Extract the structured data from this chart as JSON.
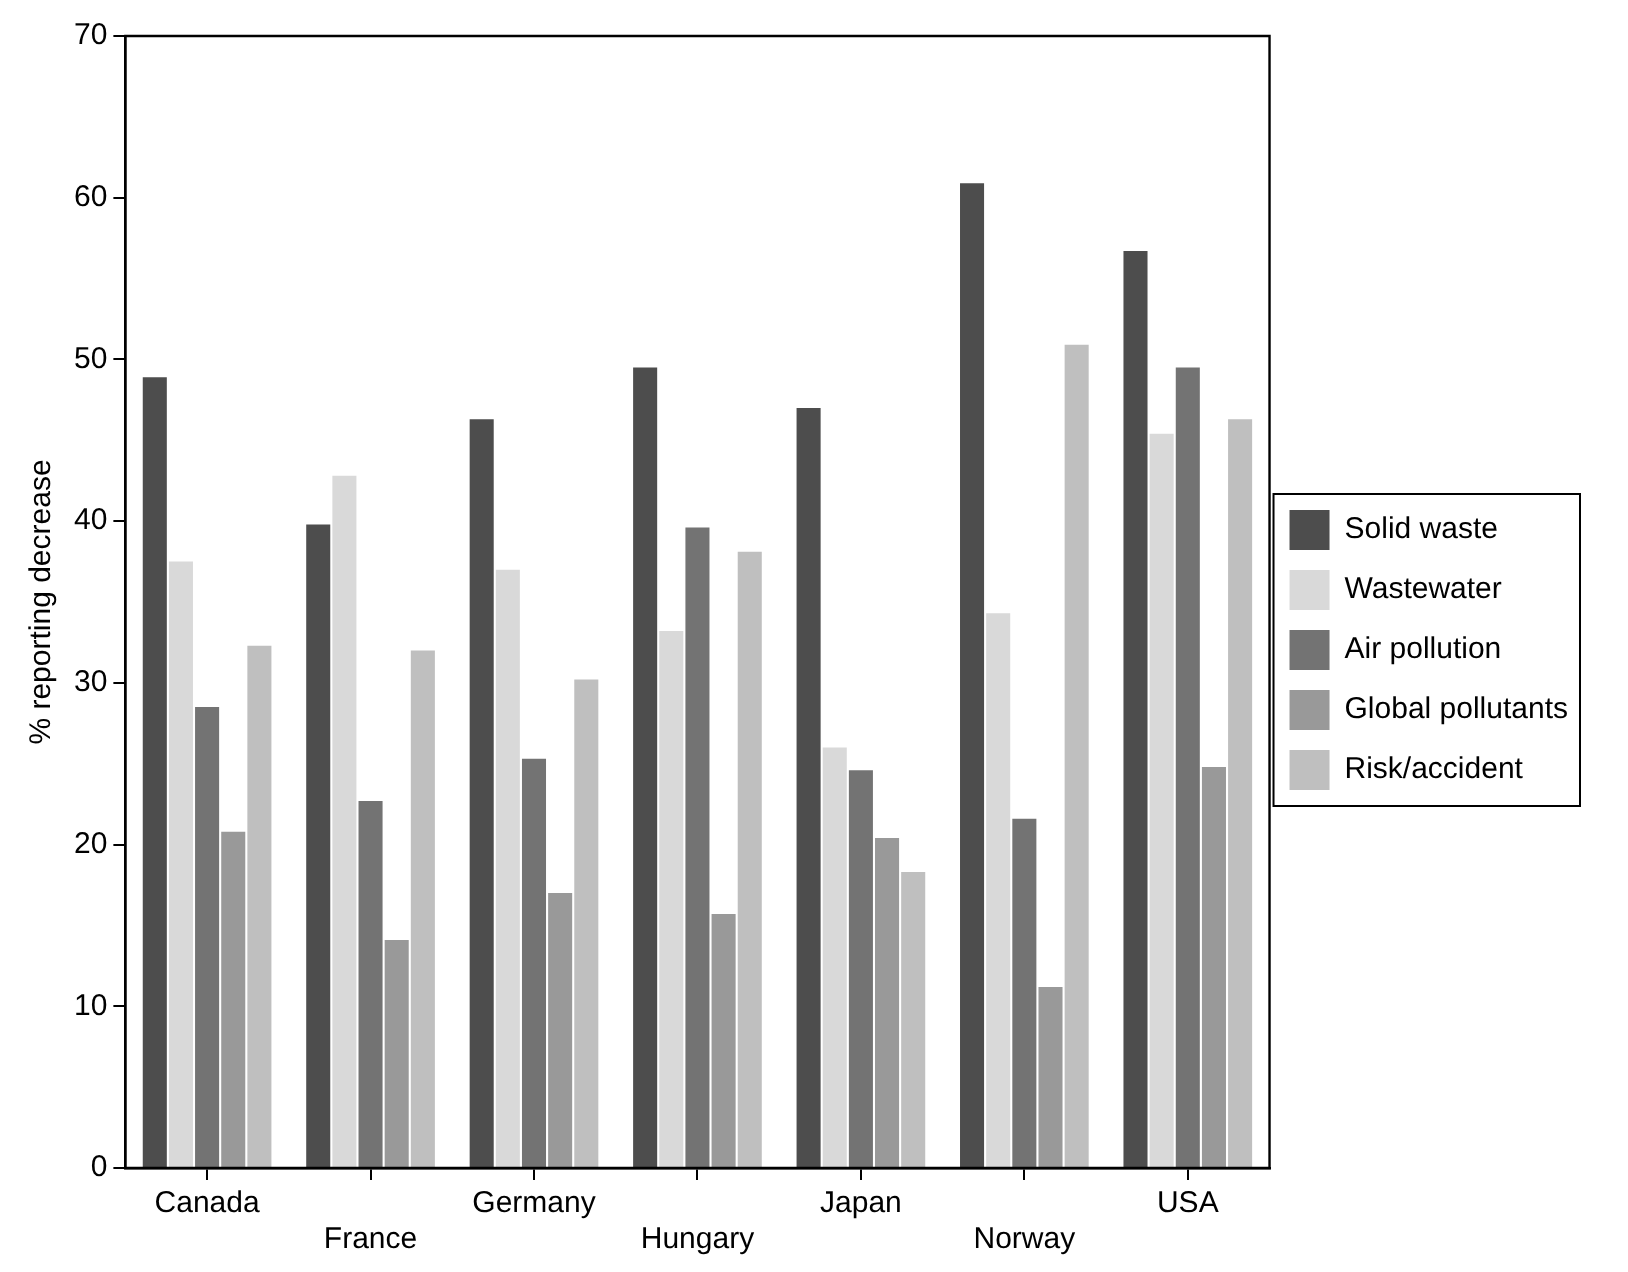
{
  "chart_data": {
    "type": "bar",
    "ylabel": "% reporting decrease",
    "categories": [
      "Canada",
      "France",
      "Germany",
      "Hungary",
      "Japan",
      "Norway",
      "USA"
    ],
    "series": [
      {
        "name": "Solid waste",
        "color": "#4d4d4d",
        "values": [
          48.9,
          39.8,
          46.3,
          49.5,
          47.0,
          60.9,
          56.7
        ]
      },
      {
        "name": "Wastewater",
        "color": "#d9d9d9",
        "values": [
          37.5,
          42.8,
          37.0,
          33.2,
          26.0,
          34.3,
          45.4
        ]
      },
      {
        "name": "Air pollution",
        "color": "#737373",
        "values": [
          28.5,
          22.7,
          25.3,
          39.6,
          24.6,
          21.6,
          49.5
        ]
      },
      {
        "name": "Global pollutants",
        "color": "#999999",
        "values": [
          20.8,
          14.1,
          17.0,
          15.7,
          20.4,
          11.2,
          24.8
        ]
      },
      {
        "name": "Risk/accident",
        "color": "#bfbfbf",
        "values": [
          32.3,
          32.0,
          30.2,
          38.1,
          18.3,
          50.9,
          46.3
        ]
      }
    ],
    "ylim": [
      0,
      70
    ],
    "yticks": [
      0,
      10,
      20,
      30,
      40,
      50,
      60,
      70
    ],
    "grid": false,
    "legend": "right"
  }
}
